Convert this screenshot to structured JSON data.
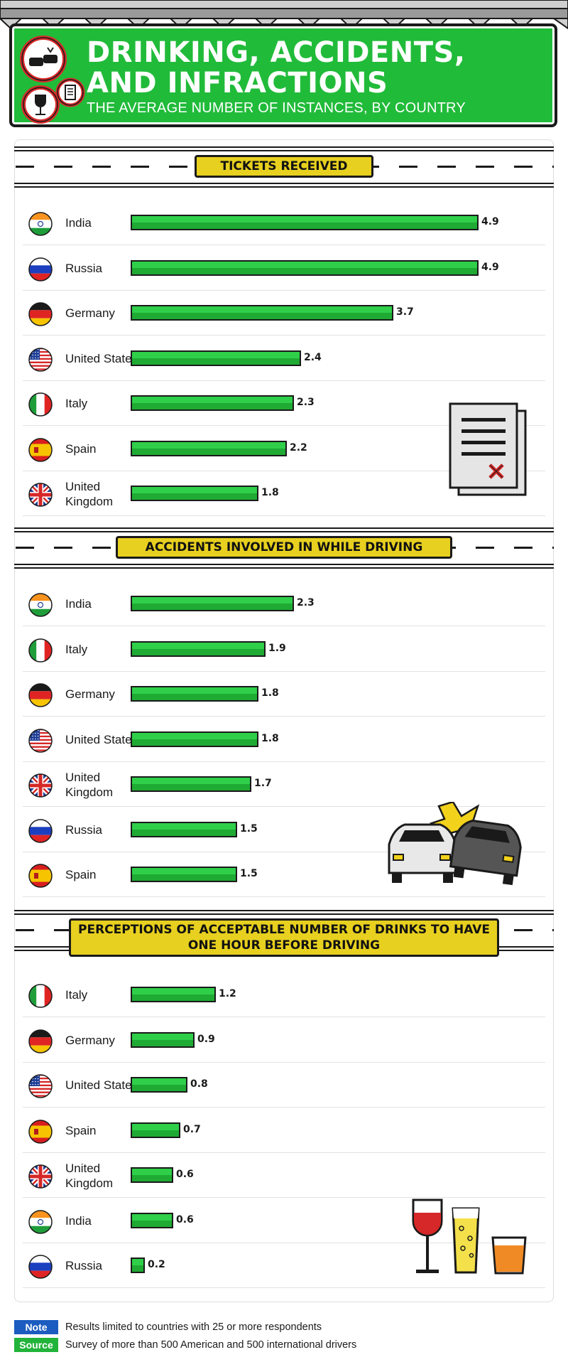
{
  "header": {
    "title_line1": "DRINKING, ACCIDENTS,",
    "title_line2": "AND INFRACTIONS",
    "subtitle": "THE AVERAGE NUMBER OF INSTANCES, BY COUNTRY"
  },
  "colors": {
    "banner_green": "#21bb3a",
    "bar_green": "#2fcf4a",
    "section_yellow": "#e7d01f",
    "note_blue": "#1c5cc0",
    "outline": "#1a1a1a"
  },
  "chart_data": [
    {
      "type": "bar",
      "title": "TICKETS RECEIVED",
      "categories": [
        "India",
        "Russia",
        "Germany",
        "United States",
        "Italy",
        "Spain",
        "United Kingdom"
      ],
      "labels": [
        "India",
        "Russia",
        "Germany",
        "United States",
        "Italy",
        "Spain",
        "United\nKingdom"
      ],
      "flags": [
        "india",
        "russia",
        "germany",
        "usa",
        "italy",
        "spain",
        "uk"
      ],
      "values": [
        4.9,
        4.9,
        3.7,
        2.4,
        2.3,
        2.2,
        1.8
      ],
      "value_labels": [
        "4.9",
        "4.9",
        "3.7",
        "2.4",
        "2.3",
        "2.2",
        "1.8"
      ],
      "decoration": "ticket-icon"
    },
    {
      "type": "bar",
      "title": "ACCIDENTS INVOLVED IN WHILE DRIVING",
      "categories": [
        "India",
        "Italy",
        "Germany",
        "United States",
        "United Kingdom",
        "Russia",
        "Spain"
      ],
      "labels": [
        "India",
        "Italy",
        "Germany",
        "United States",
        "United\nKingdom",
        "Russia",
        "Spain"
      ],
      "flags": [
        "india",
        "italy",
        "germany",
        "usa",
        "uk",
        "russia",
        "spain"
      ],
      "values": [
        2.3,
        1.9,
        1.8,
        1.8,
        1.7,
        1.5,
        1.5
      ],
      "value_labels": [
        "2.3",
        "1.9",
        "1.8",
        "1.8",
        "1.7",
        "1.5",
        "1.5"
      ],
      "decoration": "car-crash-icon"
    },
    {
      "type": "bar",
      "title": "PERCEPTIONS OF ACCEPTABLE NUMBER OF DRINKS TO HAVE ONE HOUR BEFORE DRIVING",
      "categories": [
        "Italy",
        "Germany",
        "United States",
        "Spain",
        "United Kingdom",
        "India",
        "Russia"
      ],
      "labels": [
        "Italy",
        "Germany",
        "United States",
        "Spain",
        "United\nKingdom",
        "India",
        "Russia"
      ],
      "flags": [
        "italy",
        "germany",
        "usa",
        "spain",
        "uk",
        "india",
        "russia"
      ],
      "values": [
        1.2,
        0.9,
        0.8,
        0.7,
        0.6,
        0.6,
        0.2
      ],
      "value_labels": [
        "1.2",
        "0.9",
        "0.8",
        "0.7",
        "0.6",
        "0.6",
        "0.2"
      ],
      "decoration": "drinks-icon"
    }
  ],
  "footer": {
    "note_label": "Note",
    "note_text": "Results limited to countries with 25 or more respondents",
    "source_label": "Source",
    "source_text": "Survey of more than 500 American and 500 international drivers"
  }
}
